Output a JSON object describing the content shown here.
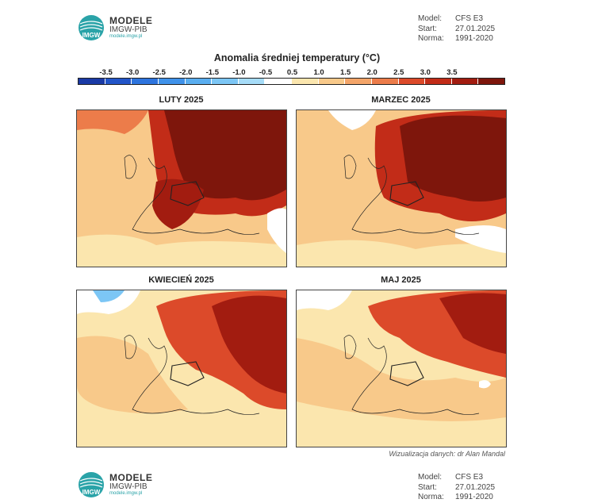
{
  "header": {
    "logo_title": "MODELE",
    "logo_subtitle": "IMGW-PIB",
    "logo_url": "modele.imgw.pl",
    "logo_mark_text": "IMGW",
    "meta": [
      {
        "key": "Model:",
        "value": "CFS E3"
      },
      {
        "key": "Start:",
        "value": "27.01.2025"
      },
      {
        "key": "Norma:",
        "value": "1991-2020"
      }
    ]
  },
  "legend": {
    "title": "Anomalia średniej temperatury (°C)",
    "labels": [
      "-3.5",
      "-3.0",
      "-2.5",
      "-2.0",
      "-1.5",
      "-1.0",
      "-0.5",
      "0.5",
      "1.0",
      "1.5",
      "2.0",
      "2.5",
      "3.0",
      "3.5"
    ],
    "colors": [
      "#1a3aa6",
      "#2255c8",
      "#2d74de",
      "#3f92ea",
      "#5aaef0",
      "#7cc6f5",
      "#a6dcf8",
      "#ffffff",
      "#fbe6ae",
      "#f8c98a",
      "#f4a569",
      "#ec7c4a",
      "#dc4a2a",
      "#c22c18",
      "#a21c10",
      "#7e160c"
    ]
  },
  "panels": [
    {
      "title": "LUTY 2025"
    },
    {
      "title": "MARZEC 2025"
    },
    {
      "title": "KWIECIEŃ 2025"
    },
    {
      "title": "MAJ 2025"
    }
  ],
  "credit": "Wizualizacja danych: dr Alan Mandal",
  "footer": {
    "logo_title": "MODELE",
    "logo_subtitle": "IMGW-PIB",
    "logo_url": "modele.imgw.pl",
    "logo_mark_text": "IMGW",
    "meta": [
      {
        "key": "Model:",
        "value": "CFS E3"
      },
      {
        "key": "Start:",
        "value": "27.01.2025"
      },
      {
        "key": "Norma:",
        "value": "1991-2020"
      }
    ]
  }
}
